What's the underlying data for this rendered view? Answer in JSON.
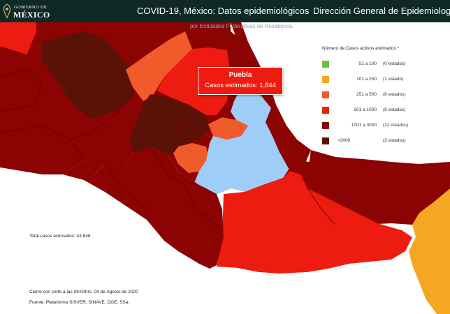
{
  "header": {
    "logo_line1": "GOBIERNO DE",
    "logo_line2": "MÉXICO",
    "app_title": "COVID-19, México: Datos epidemiológicos",
    "agency_title": "Dirección General de Epidemiología"
  },
  "map": {
    "subtitle": "por Entidades Federativas de Residencia.",
    "legend": {
      "title": "Número de Casos activos estimados *",
      "items": [
        {
          "range": "51  a   100",
          "count": "(0 estados)",
          "color": "#6fbf3f"
        },
        {
          "range": "101  a   250",
          "count": "(1 estado)",
          "color": "#f5a623"
        },
        {
          "range": "251  a   500",
          "count": "(8 estados)",
          "color": "#f15a2a"
        },
        {
          "range": "501  a  1000",
          "count": "(8 estados)",
          "color": "#ee1c10"
        },
        {
          "range": "1001  a  3000",
          "count": "(12 estados)",
          "color": "#8c0303"
        },
        {
          "range": ">3000",
          "count": "(3 estados)",
          "color": "#5a1206"
        }
      ]
    },
    "tooltip": {
      "state": "Puebla",
      "line": "Casos estimados: 1,844"
    },
    "selected_color": "#9ecdf7",
    "ocean_color": "#ffffff"
  },
  "footer": {
    "total": "Total casos estimados: 43,648",
    "cutoff": "Cierre con corte a las 09:00hrs. 04 de Agosto de 2020",
    "source": "Fuente: Plataforma SISVER, SINAVE, DGE, SSa."
  }
}
